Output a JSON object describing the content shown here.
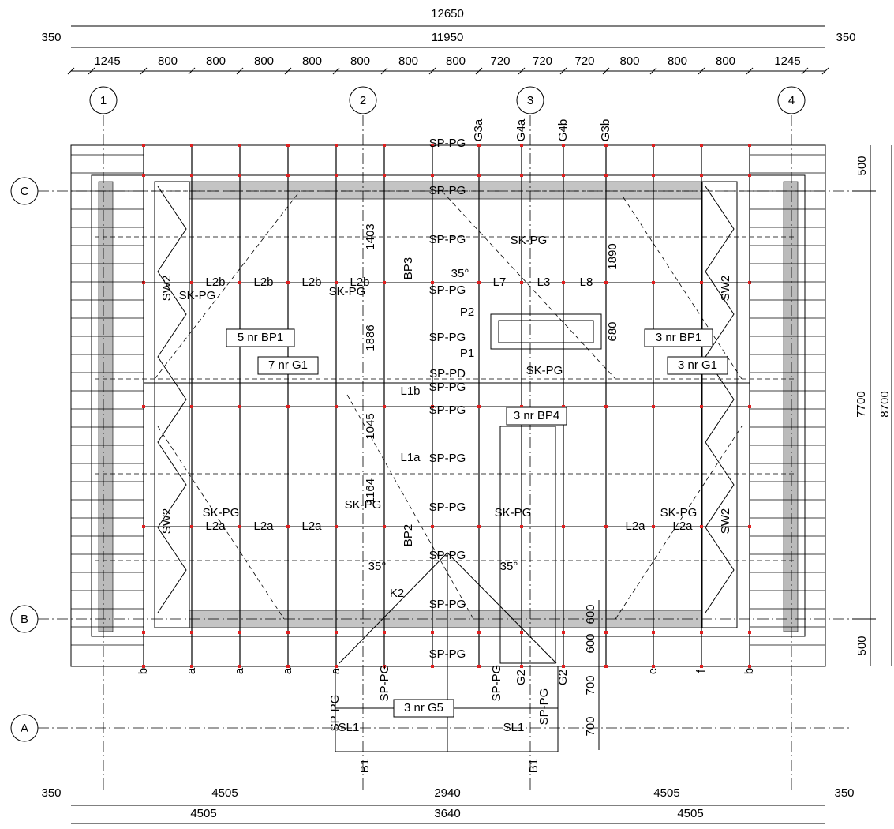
{
  "dimensions": {
    "top_overall": "12650",
    "top_inner": "11950",
    "top_left": "350",
    "top_right": "350",
    "top_spans": [
      "1245",
      "800",
      "800",
      "800",
      "800",
      "800",
      "800",
      "800",
      "720",
      "720",
      "720",
      "800",
      "800",
      "800",
      "1245"
    ],
    "right_inner": "7700",
    "right_overall": "8700",
    "right_edges": [
      "500",
      "500"
    ],
    "bottom_row1": [
      "350",
      "4505",
      "2940",
      "4505",
      "350"
    ],
    "bottom_row2": [
      "4505",
      "3640",
      "4505"
    ],
    "local": [
      "1403",
      "1886",
      "1045",
      "1164",
      "1890",
      "680",
      "600",
      "600",
      "700",
      "700"
    ]
  },
  "grid": {
    "columns": [
      "1",
      "2",
      "3",
      "4"
    ],
    "rows": [
      "C",
      "B",
      "A"
    ]
  },
  "blue_labels": [
    "SP-PG",
    "SP-PG",
    "SP-PG",
    "SP-PG",
    "SP-PG",
    "SP-PG",
    "SP-PG",
    "SP-PG",
    "SP-PG",
    "SP-PG",
    "SP-PG",
    "SP-PG",
    "SP-PG",
    "SP-PG",
    "SP-PG",
    "SP-PG"
  ],
  "red_labels": [
    "SP-PD"
  ],
  "boxed_labels": [
    "5 nr  BP1",
    "7 nr  G1",
    "3 nr  BP1",
    "3 nr  G1",
    "3 nr  BP4",
    "3 nr  G5"
  ],
  "labels": [
    "G3a",
    "G4a",
    "G4b",
    "G3b",
    "35°",
    "35°",
    "35°",
    "P2",
    "P1",
    "K2",
    "SL1",
    "SL1",
    "B1",
    "B1",
    "L7",
    "L3",
    "L8",
    "BP3",
    "BP2",
    "L1b",
    "L1a",
    "G2",
    "G2",
    "L2b",
    "L2b",
    "L2b",
    "L2b",
    "L2a",
    "L2a",
    "L2a",
    "L2a",
    "L2a",
    "SK-PG",
    "SK-PG",
    "SK-PG",
    "SK-PG",
    "SK-PG",
    "SK-PG",
    "SK-PG",
    "SK-PG",
    "SW2",
    "SW2",
    "SW2",
    "SW2",
    "b",
    "a",
    "a",
    "a",
    "a",
    "e",
    "f",
    "b"
  ]
}
